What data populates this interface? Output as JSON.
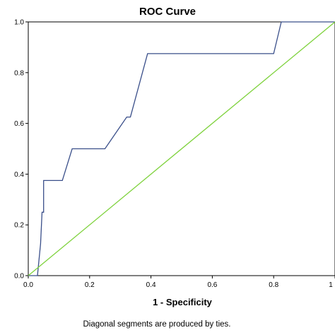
{
  "chart_data": {
    "type": "line",
    "title": "ROC Curve",
    "xlabel": "1 - Specificity",
    "ylabel": "",
    "footnote": "Diagonal segments are produced by ties.",
    "xlim": [
      0,
      1
    ],
    "ylim": [
      0,
      1
    ],
    "x_ticks": [
      "0.0",
      "0.2",
      "0.4",
      "0.6",
      "0.8",
      "1"
    ],
    "y_ticks": [
      "0.0",
      "0.2",
      "0.4",
      "0.6",
      "0.8",
      "1.0"
    ],
    "grid": false,
    "series": [
      {
        "color": "#3a4f8a",
        "x": [
          0.0,
          0.01,
          0.03,
          0.04,
          0.045,
          0.045,
          0.05,
          0.05,
          0.111,
          0.143,
          0.25,
          0.321,
          0.333,
          0.389,
          0.389,
          0.8,
          0.825,
          1.0
        ],
        "y": [
          0.0,
          0.0,
          0.0,
          0.125,
          0.25,
          0.25,
          0.25,
          0.375,
          0.375,
          0.5,
          0.5,
          0.625,
          0.625,
          0.875,
          0.875,
          0.875,
          1.0,
          1.0
        ]
      },
      {
        "color": "#7ed23c",
        "x": [
          0.0,
          1.0
        ],
        "y": [
          0.0,
          1.0
        ]
      }
    ]
  }
}
